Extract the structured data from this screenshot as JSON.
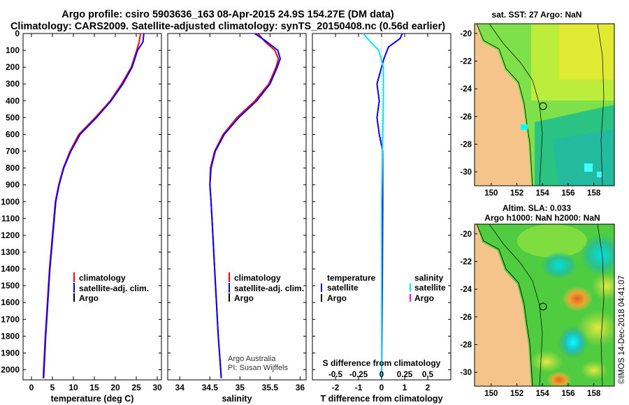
{
  "title": {
    "line1": "Argo profile: csiro 5903636_163 08-Apr-2015 24.9S 154.27E (DM data)",
    "line2": "Climatology: CARS2009. Satellite-adjusted climatology: synTS_20150408.nc (0.56d earlier)"
  },
  "colors": {
    "climatology": "#ff0000",
    "satellite": "#0000ff",
    "argo": "#000000",
    "s_satellite": "#00e5ee",
    "s_argo": "#ff00ff",
    "land": "#f5c48a",
    "sea_green": "#33cc33"
  },
  "depth_ticks": [
    0,
    100,
    200,
    300,
    400,
    500,
    600,
    700,
    800,
    900,
    1000,
    1100,
    1200,
    1300,
    1400,
    1500,
    1600,
    1700,
    1800,
    1900,
    2000
  ],
  "chart_data": [
    {
      "type": "line",
      "name": "temperature-profile",
      "xlabel": "temperature (deg C)",
      "ylabel": "depth",
      "xlim": [
        -2,
        31
      ],
      "ylim": [
        2060,
        0
      ],
      "xticks": [
        0,
        5,
        10,
        15,
        20,
        25,
        30
      ],
      "legend": {
        "position": "bottom-right",
        "items": [
          "climatology",
          "satellite-adj. clim.",
          "Argo"
        ]
      },
      "series": [
        {
          "name": "climatology",
          "color": "#ff0000",
          "points": [
            [
              26.0,
              0
            ],
            [
              25.7,
              50
            ],
            [
              25.1,
              100
            ],
            [
              23.8,
              200
            ],
            [
              21.5,
              300
            ],
            [
              18.8,
              400
            ],
            [
              15.2,
              500
            ],
            [
              11.3,
              600
            ],
            [
              9.2,
              700
            ],
            [
              7.6,
              800
            ],
            [
              6.5,
              900
            ],
            [
              5.7,
              1000
            ],
            [
              5.0,
              1200
            ],
            [
              4.3,
              1400
            ],
            [
              3.8,
              1600
            ],
            [
              3.3,
              1800
            ],
            [
              2.9,
              2000
            ],
            [
              2.8,
              2050
            ]
          ]
        },
        {
          "name": "satellite-adj. clim.",
          "color": "#0000ff",
          "points": [
            [
              26.8,
              0
            ],
            [
              26.6,
              50
            ],
            [
              25.3,
              100
            ],
            [
              24.0,
              200
            ],
            [
              21.8,
              300
            ],
            [
              19.0,
              400
            ],
            [
              15.5,
              500
            ],
            [
              11.6,
              600
            ],
            [
              9.4,
              700
            ],
            [
              7.7,
              800
            ],
            [
              6.6,
              900
            ],
            [
              5.8,
              1000
            ],
            [
              5.1,
              1200
            ],
            [
              4.4,
              1400
            ],
            [
              3.9,
              1600
            ],
            [
              3.4,
              1800
            ],
            [
              3.0,
              2000
            ],
            [
              2.9,
              2050
            ]
          ]
        }
      ]
    },
    {
      "type": "line",
      "name": "salinity-profile",
      "xlabel": "salinity",
      "xlim": [
        33.8,
        36.1
      ],
      "ylim": [
        2060,
        0
      ],
      "xticks": [
        34,
        34.5,
        35,
        35.5,
        36
      ],
      "legend": {
        "position": "bottom-right",
        "items": [
          "climatology",
          "satellite-adj. clim.",
          "Argo"
        ]
      },
      "annotation": [
        "Argo Australia",
        "PI: Susan Wijffels"
      ],
      "series": [
        {
          "name": "climatology",
          "color": "#ff0000",
          "points": [
            [
              35.3,
              0
            ],
            [
              35.42,
              50
            ],
            [
              35.58,
              100
            ],
            [
              35.64,
              150
            ],
            [
              35.6,
              200
            ],
            [
              35.48,
              300
            ],
            [
              35.25,
              400
            ],
            [
              34.95,
              500
            ],
            [
              34.72,
              600
            ],
            [
              34.58,
              700
            ],
            [
              34.51,
              800
            ],
            [
              34.5,
              900
            ],
            [
              34.52,
              1000
            ],
            [
              34.55,
              1200
            ],
            [
              34.58,
              1400
            ],
            [
              34.61,
              1600
            ],
            [
              34.64,
              1800
            ],
            [
              34.68,
              2000
            ],
            [
              34.69,
              2050
            ]
          ]
        },
        {
          "name": "satellite-adj. clim.",
          "color": "#0000ff",
          "points": [
            [
              35.25,
              0
            ],
            [
              35.45,
              50
            ],
            [
              35.63,
              100
            ],
            [
              35.67,
              150
            ],
            [
              35.62,
              200
            ],
            [
              35.5,
              300
            ],
            [
              35.28,
              400
            ],
            [
              34.98,
              500
            ],
            [
              34.74,
              600
            ],
            [
              34.59,
              700
            ],
            [
              34.52,
              800
            ],
            [
              34.5,
              900
            ],
            [
              34.52,
              1000
            ],
            [
              34.55,
              1200
            ],
            [
              34.58,
              1400
            ],
            [
              34.61,
              1600
            ],
            [
              34.64,
              1800
            ],
            [
              34.68,
              2000
            ],
            [
              34.69,
              2050
            ]
          ]
        }
      ]
    },
    {
      "type": "line",
      "name": "difference-profile",
      "xlabel": "T difference from climatology",
      "xlabel2": "S difference from climatology",
      "xlim": [
        -3,
        3
      ],
      "ylim": [
        2060,
        0
      ],
      "xticks": [
        -2,
        -1,
        0,
        1,
        2
      ],
      "x2ticks": [
        -0.5,
        -0.25,
        0,
        0.25,
        0.5
      ],
      "x2tick_labels": [
        "-0.5",
        "-0.25",
        "0",
        "0.25",
        "0.5"
      ],
      "legend_left": [
        "temperature",
        "satellite",
        "Argo"
      ],
      "legend_right": [
        "salinity",
        "satellite",
        "Argo"
      ],
      "series": [
        {
          "name": "temperature satellite",
          "color": "#0000ff",
          "points": [
            [
              0.9,
              0
            ],
            [
              0.8,
              30
            ],
            [
              0.3,
              80
            ],
            [
              0.1,
              150
            ],
            [
              -0.2,
              300
            ],
            [
              -0.1,
              400
            ],
            [
              -0.2,
              500
            ],
            [
              -0.1,
              600
            ],
            [
              0.05,
              700
            ],
            [
              0.05,
              800
            ],
            [
              0.05,
              900
            ],
            [
              0.05,
              1000
            ],
            [
              0.03,
              1500
            ],
            [
              0,
              2050
            ]
          ]
        },
        {
          "name": "salinity satellite",
          "color": "#00e5ee",
          "points": [
            [
              -0.2,
              0
            ],
            [
              -0.12,
              50
            ],
            [
              -0.03,
              100
            ],
            [
              0.02,
              200
            ],
            [
              0.02,
              400
            ],
            [
              0.01,
              700
            ],
            [
              0,
              1000
            ],
            [
              0,
              1500
            ],
            [
              0,
              2050
            ]
          ]
        }
      ]
    }
  ],
  "maps": [
    {
      "name": "sst-map",
      "title": "sat. SST: 27 Argo: NaN",
      "xticks": [
        150,
        152,
        154,
        156,
        158
      ],
      "yticks": [
        -20,
        -22,
        -24,
        -26,
        -28,
        -30
      ]
    },
    {
      "name": "sla-map",
      "title1": "Altim. SLA: 0.033",
      "title2": "Argo h1000: NaN h2000: NaN",
      "xticks": [
        150,
        152,
        154,
        156,
        158
      ],
      "yticks": [
        -20,
        -22,
        -24,
        -26,
        -28,
        -30
      ]
    }
  ],
  "credit": "©IMOS 14-Dec-2018 04:41:07"
}
